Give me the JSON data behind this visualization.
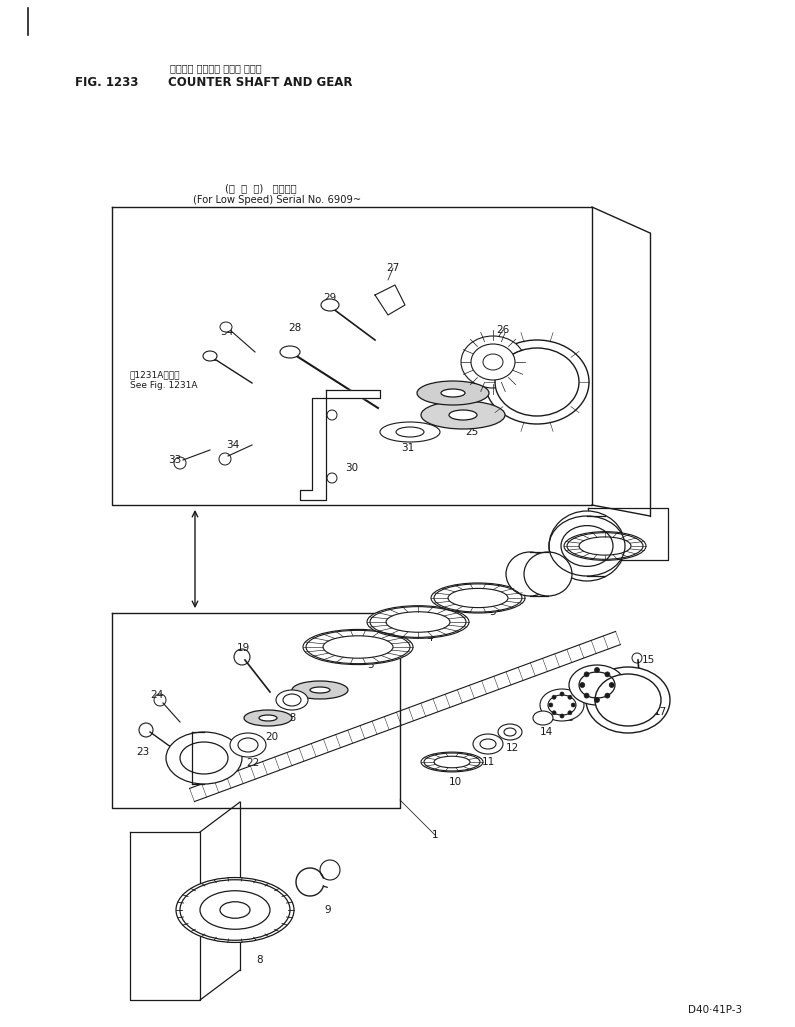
{
  "title_japanese": "カウンタ シャフト および ギヤー",
  "title_english": "COUNTER SHAFT AND GEAR",
  "fig_label": "FIG. 1233",
  "model_code": "D40·41P-3",
  "subtitle_japanese": "(低  速  用)   適用号機",
  "subtitle_english": "(For Low Speed) Serial No. 6909~",
  "see_fig_japanese": "第1231A図参照",
  "see_fig_english": "See Fig. 1231A",
  "bg_color": "#ffffff",
  "line_color": "#1a1a1a"
}
